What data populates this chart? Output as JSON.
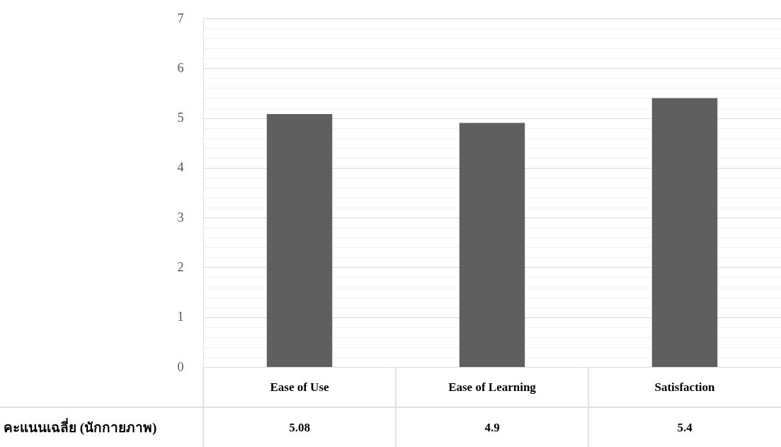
{
  "chart_data": {
    "type": "bar",
    "categories": [
      "Ease of Use",
      "Ease of Learning",
      "Satisfaction"
    ],
    "series": [
      {
        "name": "คะแนนเฉลี่ย (นักกายภาพ)",
        "color": "#5f5f5f",
        "values": [
          5.08,
          4.9,
          5.4
        ]
      }
    ],
    "ylim": [
      0,
      7
    ],
    "yticks": [
      0,
      {
        "value": 0.2,
        "label": null
      },
      {
        "value": 0.4,
        "label": null
      },
      {
        "value": 0.6,
        "label": null
      },
      {
        "value": 0.8,
        "label": null
      },
      1,
      {
        "value": 1.2,
        "label": null
      },
      {
        "value": 1.4,
        "label": null
      },
      {
        "value": 1.6,
        "label": null
      },
      {
        "value": 1.8,
        "label": null
      },
      2,
      {
        "value": 2.2,
        "label": null
      },
      {
        "value": 2.4,
        "label": null
      },
      {
        "value": 2.6,
        "label": null
      },
      {
        "value": 2.8,
        "label": null
      },
      3,
      {
        "value": 3.2,
        "label": null
      },
      {
        "value": 3.4,
        "label": null
      },
      {
        "value": 3.6,
        "label": null
      },
      {
        "value": 3.8,
        "label": null
      },
      4,
      {
        "value": 4.2,
        "label": null
      },
      {
        "value": 4.4,
        "label": null
      },
      {
        "value": 4.6,
        "label": null
      },
      {
        "value": 4.8,
        "label": null
      },
      5,
      {
        "value": 5.2,
        "label": null
      },
      {
        "value": 5.4,
        "label": null
      },
      {
        "value": 5.6,
        "label": null
      },
      {
        "value": 5.8,
        "label": null
      },
      6,
      {
        "value": 6.2,
        "label": null
      },
      {
        "value": 6.4,
        "label": null
      },
      {
        "value": 6.6,
        "label": null
      },
      {
        "value": 6.8,
        "label": null
      },
      7
    ],
    "grid": "y",
    "data_labels": true
  }
}
